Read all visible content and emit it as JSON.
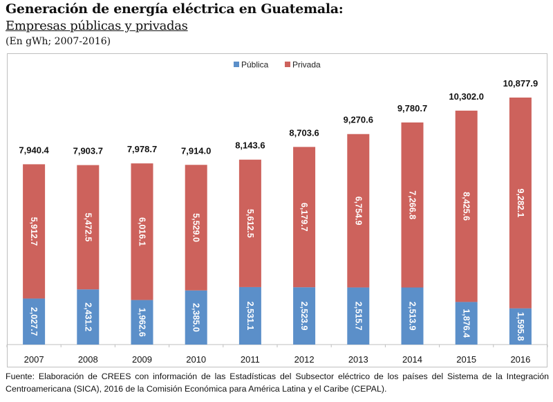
{
  "header": {
    "title": "Generación de energía eléctrica en Guatemala:",
    "subtitle": "Empresas públicas y privadas",
    "units": "(En gWh; 2007-2016)"
  },
  "colors": {
    "publica": "#5b8fc9",
    "privada": "#cd625c",
    "axis": "#bfbfbf",
    "text": "#111111",
    "bar_label": "#ffffff"
  },
  "chart_data": {
    "type": "bar",
    "stacked": true,
    "title": "Generación de energía eléctrica en Guatemala: Empresas públicas y privadas",
    "subtitle": "(En gWh; 2007-2016)",
    "xlabel": "",
    "ylabel": "gWh",
    "ylim": [
      0,
      10877.9
    ],
    "grid": false,
    "legend": {
      "position": "top-center",
      "entries": [
        "Pública",
        "Privada"
      ]
    },
    "categories": [
      "2007",
      "2008",
      "2009",
      "2010",
      "2011",
      "2012",
      "2013",
      "2014",
      "2015",
      "2016"
    ],
    "series": [
      {
        "name": "Pública",
        "color": "#5b8fc9",
        "values": [
          2027.7,
          2431.2,
          1962.6,
          2385.0,
          2531.1,
          2523.9,
          2515.7,
          2513.9,
          1876.4,
          1595.8
        ],
        "labels": [
          "2,027.7",
          "2,431.2",
          "1,962.6",
          "2,385.0",
          "2,531.1",
          "2,523.9",
          "2,515.7",
          "2,513.9",
          "1,876.4",
          "1,595.8"
        ]
      },
      {
        "name": "Privada",
        "color": "#cd625c",
        "values": [
          5912.7,
          5472.5,
          6016.1,
          5529.0,
          5612.5,
          6179.7,
          6754.9,
          7266.8,
          8425.6,
          9282.1
        ],
        "labels": [
          "5,912.7",
          "5,472.5",
          "6,016.1",
          "5,529.0",
          "5,612.5",
          "6,179.7",
          "6,754.9",
          "7,266.8",
          "8,425.6",
          "9,282.1"
        ]
      }
    ],
    "totals": [
      7940.4,
      7903.7,
      7978.7,
      7914.0,
      8143.6,
      8703.6,
      9270.6,
      9780.7,
      10302.0,
      10877.9
    ],
    "total_labels": [
      "7,940.4",
      "7,903.7",
      "7,978.7",
      "7,914.0",
      "8,143.6",
      "8,703.6",
      "9,270.6",
      "9,780.7",
      "10,302.0",
      "10,877.9"
    ]
  },
  "source": "Fuente: Elaboración de CREES con información de las Estadísticas del Subsector eléctrico de los países del Sistema de la Integración Centroamericana (SICA), 2016 de la Comisión Económica para América Latina y el Caribe (CEPAL)."
}
